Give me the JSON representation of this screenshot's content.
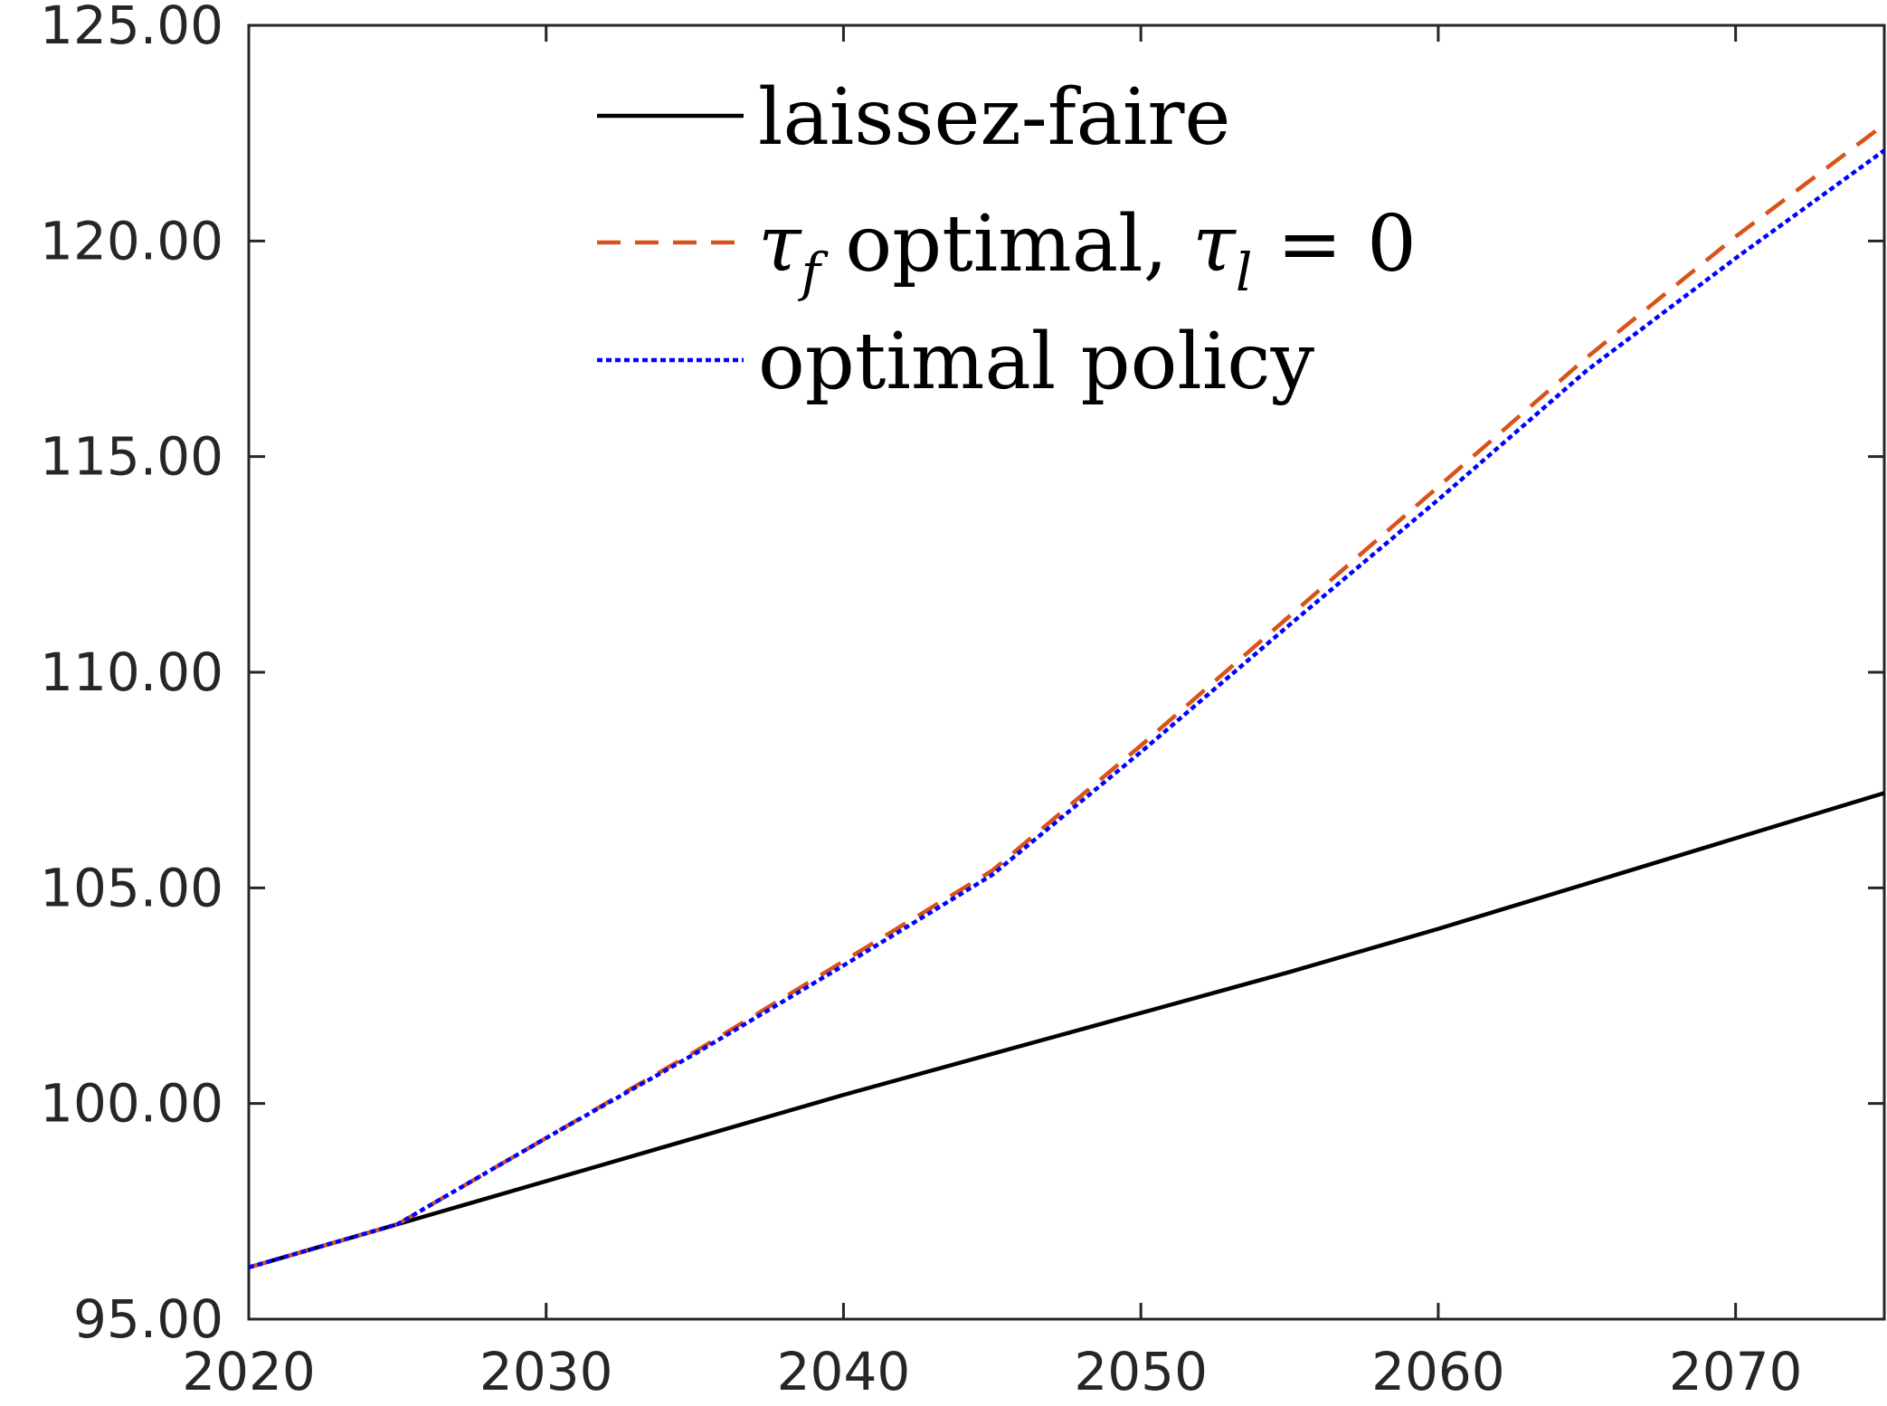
{
  "chart_data": {
    "type": "line",
    "title": "",
    "xlabel": "",
    "ylabel": "",
    "xlim": [
      2020,
      2075
    ],
    "ylim": [
      95,
      125
    ],
    "xticks": [
      2020,
      2030,
      2040,
      2050,
      2060,
      2070
    ],
    "yticks": [
      95,
      100,
      105,
      110,
      115,
      120,
      125
    ],
    "x_tick_labels": [
      "2020",
      "2030",
      "2040",
      "2050",
      "2060",
      "2070"
    ],
    "y_tick_labels": [
      "95.00",
      "100.00",
      "105.00",
      "110.00",
      "115.00",
      "120.00",
      "125.00"
    ],
    "grid": false,
    "box": true,
    "legend_position": "top",
    "x": [
      2020,
      2025,
      2030,
      2035,
      2040,
      2045,
      2050,
      2055,
      2060,
      2065,
      2070,
      2075
    ],
    "series": [
      {
        "name": "laissez-faire",
        "style": "solid",
        "color": "#000000",
        "values": [
          96.2,
          97.2,
          98.2,
          99.2,
          100.2,
          101.15,
          102.1,
          103.05,
          104.05,
          105.1,
          106.15,
          107.2
        ]
      },
      {
        "name": "τf optimal, τl = 0",
        "legend_parts": [
          "τ",
          "f",
          " optimal, ",
          "τ",
          "l",
          " = 0"
        ],
        "style": "dashed",
        "color": "#D95319",
        "values": [
          96.2,
          97.2,
          99.2,
          101.2,
          103.3,
          105.4,
          108.3,
          111.3,
          114.3,
          117.3,
          120.1,
          122.7
        ]
      },
      {
        "name": "optimal policy",
        "style": "dotted",
        "color": "#0000FF",
        "values": [
          96.2,
          97.2,
          99.2,
          101.15,
          103.2,
          105.3,
          108.15,
          111.1,
          114.0,
          117.0,
          119.6,
          122.1
        ]
      }
    ]
  }
}
